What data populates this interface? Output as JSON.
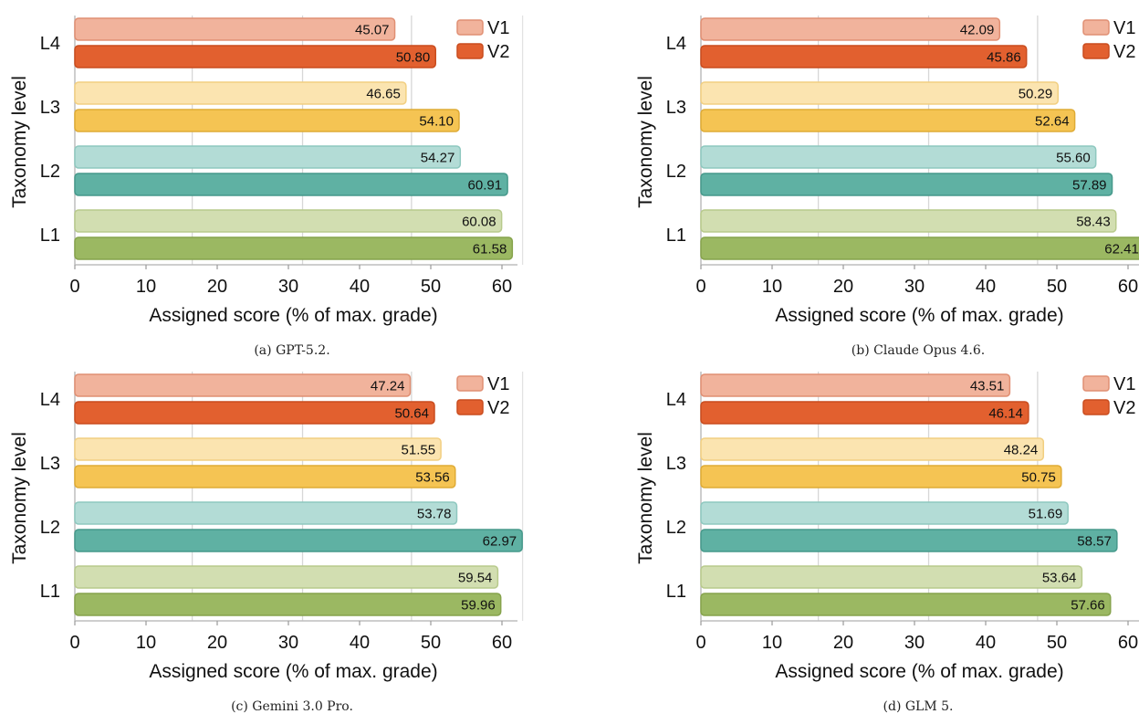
{
  "colors": {
    "L1": {
      "v1": "#d2deb1",
      "v2": "#9bb862",
      "v1_stroke": "#b8ca8c",
      "v2_stroke": "#86a34c"
    },
    "L2": {
      "v1": "#b3dcd6",
      "v2": "#5fb1a3",
      "v1_stroke": "#8ec8bf",
      "v2_stroke": "#46998b"
    },
    "L3": {
      "v1": "#fbe4b0",
      "v2": "#f5c453",
      "v1_stroke": "#f2cf81",
      "v2_stroke": "#dfab35"
    },
    "L4": {
      "v1": "#f1b39c",
      "v2": "#e2602f",
      "v1_stroke": "#e08f73",
      "v2_stroke": "#c94c1e"
    }
  },
  "chart_data": [
    {
      "type": "bar",
      "orientation": "horizontal",
      "caption": "(a) GPT-5.2.",
      "xlabel": "Assigned score (% of max. grade)",
      "ylabel": "Taxonomy level",
      "categories": [
        "L1",
        "L2",
        "L3",
        "L4"
      ],
      "xticks": [
        "0",
        "10",
        "20",
        "30",
        "40",
        "50",
        "60"
      ],
      "xlim": [
        0,
        62
      ],
      "legend": "top-right",
      "series": [
        {
          "name": "V1",
          "values": [
            60.08,
            54.27,
            46.65,
            45.07
          ],
          "labels": [
            "60.08",
            "54.27",
            "46.65",
            "45.07"
          ]
        },
        {
          "name": "V2",
          "values": [
            61.58,
            60.91,
            54.1,
            50.8
          ],
          "labels": [
            "61.58",
            "60.91",
            "54.10",
            "50.80"
          ]
        }
      ]
    },
    {
      "type": "bar",
      "orientation": "horizontal",
      "caption": "(b) Claude Opus 4.6.",
      "xlabel": "Assigned score (% of max. grade)",
      "ylabel": "Taxonomy level",
      "categories": [
        "L1",
        "L2",
        "L3",
        "L4"
      ],
      "xticks": [
        "0",
        "10",
        "20",
        "30",
        "40",
        "50",
        "60"
      ],
      "xlim": [
        0,
        62
      ],
      "legend": "top-right",
      "series": [
        {
          "name": "V1",
          "values": [
            58.43,
            55.6,
            50.29,
            42.09
          ],
          "labels": [
            "58.43",
            "55.60",
            "50.29",
            "42.09"
          ]
        },
        {
          "name": "V2",
          "values": [
            62.41,
            57.89,
            52.64,
            45.86
          ],
          "labels": [
            "62.41",
            "57.89",
            "52.64",
            "45.86"
          ]
        }
      ]
    },
    {
      "type": "bar",
      "orientation": "horizontal",
      "caption": "(c) Gemini 3.0 Pro.",
      "xlabel": "Assigned score (% of max. grade)",
      "ylabel": "Taxonomy level",
      "categories": [
        "L1",
        "L2",
        "L3",
        "L4"
      ],
      "xticks": [
        "0",
        "10",
        "20",
        "30",
        "40",
        "50",
        "60"
      ],
      "xlim": [
        0,
        63
      ],
      "legend": "top-right",
      "series": [
        {
          "name": "V1",
          "values": [
            59.54,
            53.78,
            51.55,
            47.24
          ],
          "labels": [
            "59.54",
            "53.78",
            "51.55",
            "47.24"
          ]
        },
        {
          "name": "V2",
          "values": [
            59.96,
            62.97,
            53.56,
            50.64
          ],
          "labels": [
            "59.96",
            "62.97",
            "53.56",
            "50.64"
          ]
        }
      ]
    },
    {
      "type": "bar",
      "orientation": "horizontal",
      "caption": "(d) GLM 5.",
      "xlabel": "Assigned score (% of max. grade)",
      "ylabel": "Taxonomy level",
      "categories": [
        "L1",
        "L2",
        "L3",
        "L4"
      ],
      "xticks": [
        "0",
        "10",
        "20",
        "30",
        "40",
        "50",
        "60"
      ],
      "xlim": [
        0,
        62
      ],
      "legend": "top-right",
      "series": [
        {
          "name": "V1",
          "values": [
            53.64,
            51.69,
            48.24,
            43.51
          ],
          "labels": [
            "53.64",
            "51.69",
            "48.24",
            "43.51"
          ]
        },
        {
          "name": "V2",
          "values": [
            57.66,
            58.57,
            50.75,
            46.14
          ],
          "labels": [
            "57.66",
            "58.57",
            "50.75",
            "46.14"
          ]
        }
      ]
    }
  ]
}
